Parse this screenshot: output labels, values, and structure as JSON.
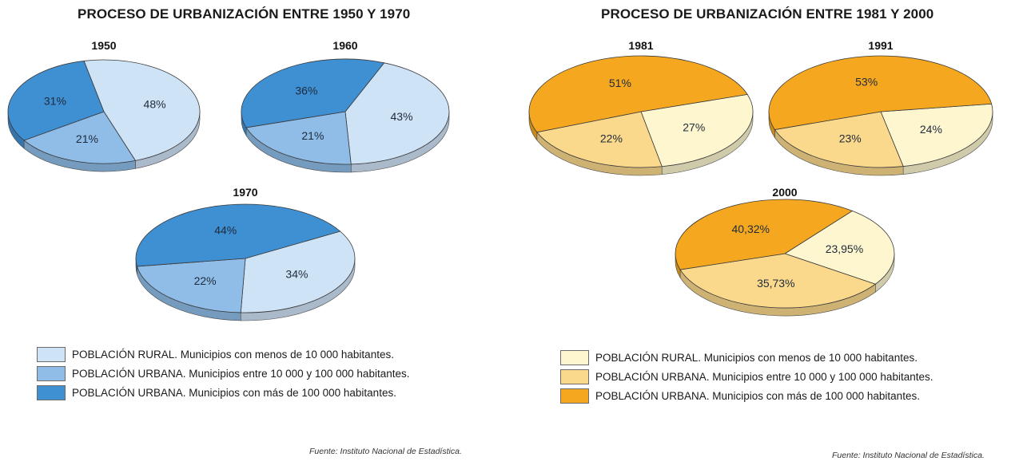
{
  "panels": [
    {
      "title": "PROCESO DE URBANIZACIÓN ENTRE 1950 Y 1970",
      "legend": [
        {
          "label": "POBLACIÓN RURAL. Municipios con menos de 10 000 habitantes.",
          "color": "#cfe3f7"
        },
        {
          "label": "POBLACIÓN URBANA. Municipios entre 10 000  y 100 000 habitantes.",
          "color": "#8fbde8"
        },
        {
          "label": "POBLACIÓN URBANA. Municipios con más de 100 000 habitantes.",
          "color": "#3f8fd3"
        }
      ],
      "source": "Fuente: Instituto Nacional de Estadística."
    },
    {
      "title": "PROCESO DE URBANIZACIÓN ENTRE 1981 Y 2000",
      "legend": [
        {
          "label": "POBLACIÓN RURAL. Municipios con menos de 10 000 habitantes.",
          "color": "#fdf6cf"
        },
        {
          "label": "POBLACIÓN URBANA. Municipios entre 10 000  y 100 000 habitantes.",
          "color": "#fbd98c"
        },
        {
          "label": "POBLACIÓN URBANA. Municipios con más de 100 000 habitantes.",
          "color": "#f5a81f"
        }
      ],
      "source": "Fuente: Instituto Nacional de Estadística."
    }
  ],
  "chart_data": [
    {
      "type": "pie",
      "title": "1950",
      "panel": 0,
      "categories": [
        "Rural (<10 000)",
        "Urbana (10 000–100 000)",
        "Urbana (>100 000)"
      ],
      "values": [
        48,
        21,
        31
      ],
      "labels": [
        "48%",
        "21%",
        "31%"
      ]
    },
    {
      "type": "pie",
      "title": "1960",
      "panel": 0,
      "categories": [
        "Rural (<10 000)",
        "Urbana (10 000–100 000)",
        "Urbana (>100 000)"
      ],
      "values": [
        43,
        21,
        36
      ],
      "labels": [
        "43%",
        "21%",
        "36%"
      ]
    },
    {
      "type": "pie",
      "title": "1970",
      "panel": 0,
      "categories": [
        "Rural (<10 000)",
        "Urbana (10 000–100 000)",
        "Urbana (>100 000)"
      ],
      "values": [
        34,
        22,
        44
      ],
      "labels": [
        "34%",
        "22%",
        "44%"
      ]
    },
    {
      "type": "pie",
      "title": "1981",
      "panel": 1,
      "categories": [
        "Rural (<10 000)",
        "Urbana (10 000–100 000)",
        "Urbana (>100 000)"
      ],
      "values": [
        27,
        22,
        51
      ],
      "labels": [
        "27%",
        "22%",
        "51%"
      ]
    },
    {
      "type": "pie",
      "title": "1991",
      "panel": 1,
      "categories": [
        "Rural (<10 000)",
        "Urbana (10 000–100 000)",
        "Urbana (>100 000)"
      ],
      "values": [
        24,
        23,
        53
      ],
      "labels": [
        "24%",
        "23%",
        "53%"
      ]
    },
    {
      "type": "pie",
      "title": "2000",
      "panel": 1,
      "categories": [
        "Rural (<10 000)",
        "Urbana (10 000–100 000)",
        "Urbana (>100 000)"
      ],
      "values": [
        23.95,
        35.73,
        40.32
      ],
      "labels": [
        "23,95%",
        "35,73%",
        "40,32%"
      ]
    }
  ]
}
